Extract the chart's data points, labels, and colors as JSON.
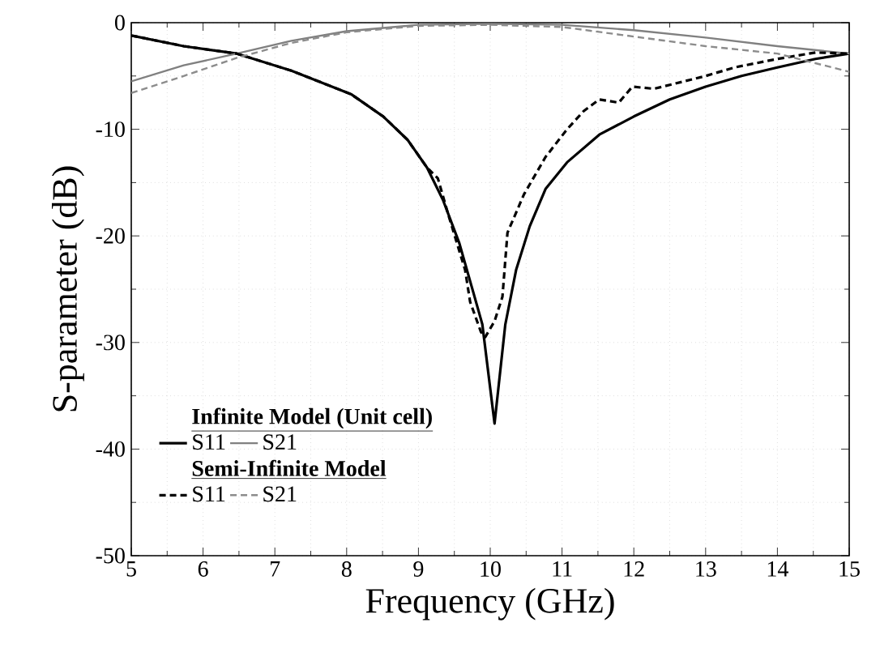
{
  "chart_data": {
    "type": "line",
    "xlabel": "Frequency (GHz)",
    "ylabel": "S-parameter (dB)",
    "xlim": [
      5,
      15
    ],
    "xticks": [
      5,
      6,
      7,
      8,
      9,
      10,
      11,
      12,
      13,
      14,
      15
    ],
    "ylim": [
      -50,
      0
    ],
    "yticks": [
      -50,
      -40,
      -30,
      -20,
      -10,
      0
    ],
    "grid": true,
    "legend": "bottom left",
    "marker": "none",
    "annotations": [
      "Infinite Model (Unit cell)",
      "Semi-Infinite Model"
    ],
    "series": [
      {
        "name": "S11",
        "color": "#000000",
        "line_style": "solid",
        "x": [
          5.0,
          5.73,
          6.47,
          7.23,
          8.06,
          8.51,
          8.85,
          9.12,
          9.34,
          9.57,
          9.76,
          9.89,
          10.06,
          10.21,
          10.36,
          10.55,
          10.77,
          11.07,
          11.52,
          12.0,
          12.5,
          13.0,
          13.5,
          14.0,
          14.53,
          15.0
        ],
        "values": [
          -1.2,
          -2.2,
          -2.9,
          -4.5,
          -6.7,
          -8.8,
          -11.0,
          -13.6,
          -16.6,
          -20.7,
          -25.2,
          -28.3,
          -37.6,
          -28.3,
          -23.2,
          -19.1,
          -15.6,
          -13.1,
          -10.5,
          -8.8,
          -7.2,
          -6.0,
          -5.0,
          -4.2,
          -3.4,
          -2.9
        ]
      },
      {
        "name": "S21",
        "color": "#808080",
        "line_style": "solid",
        "x": [
          5.0,
          5.73,
          6.47,
          7.23,
          8.0,
          9.0,
          10.0,
          11.0,
          12.0,
          13.0,
          14.0,
          15.0
        ],
        "values": [
          -5.5,
          -4.0,
          -2.9,
          -1.7,
          -0.8,
          -0.2,
          -0.1,
          -0.2,
          -0.7,
          -1.4,
          -2.2,
          -2.9
        ]
      },
      {
        "name": "S11",
        "color": "#000000",
        "line_style": "dashed",
        "x": [
          5.0,
          5.73,
          6.47,
          7.23,
          8.06,
          8.51,
          8.85,
          9.12,
          9.27,
          9.42,
          9.65,
          9.72,
          9.87,
          9.93,
          10.06,
          10.17,
          10.24,
          10.47,
          10.77,
          11.07,
          11.3,
          11.52,
          11.79,
          11.98,
          12.28,
          12.58,
          13.0,
          13.4,
          14.0,
          14.53,
          15.0
        ],
        "values": [
          -1.2,
          -2.2,
          -2.9,
          -4.5,
          -6.7,
          -8.8,
          -11.0,
          -13.6,
          -14.6,
          -18.1,
          -23.2,
          -26.2,
          -29.0,
          -29.5,
          -28.0,
          -25.7,
          -19.7,
          -16.1,
          -12.6,
          -10.0,
          -8.3,
          -7.2,
          -7.5,
          -6.0,
          -6.2,
          -5.7,
          -5.0,
          -4.2,
          -3.4,
          -2.8,
          -2.9
        ]
      },
      {
        "name": "S21",
        "color": "#8c8c8c",
        "line_style": "dashed",
        "x": [
          5.0,
          5.73,
          6.47,
          7.23,
          8.0,
          9.0,
          10.0,
          11.0,
          12.0,
          13.0,
          14.0,
          15.0
        ],
        "values": [
          -6.6,
          -5.0,
          -3.3,
          -1.9,
          -0.9,
          -0.3,
          -0.2,
          -0.4,
          -1.3,
          -2.2,
          -2.9,
          -4.6
        ]
      }
    ]
  }
}
